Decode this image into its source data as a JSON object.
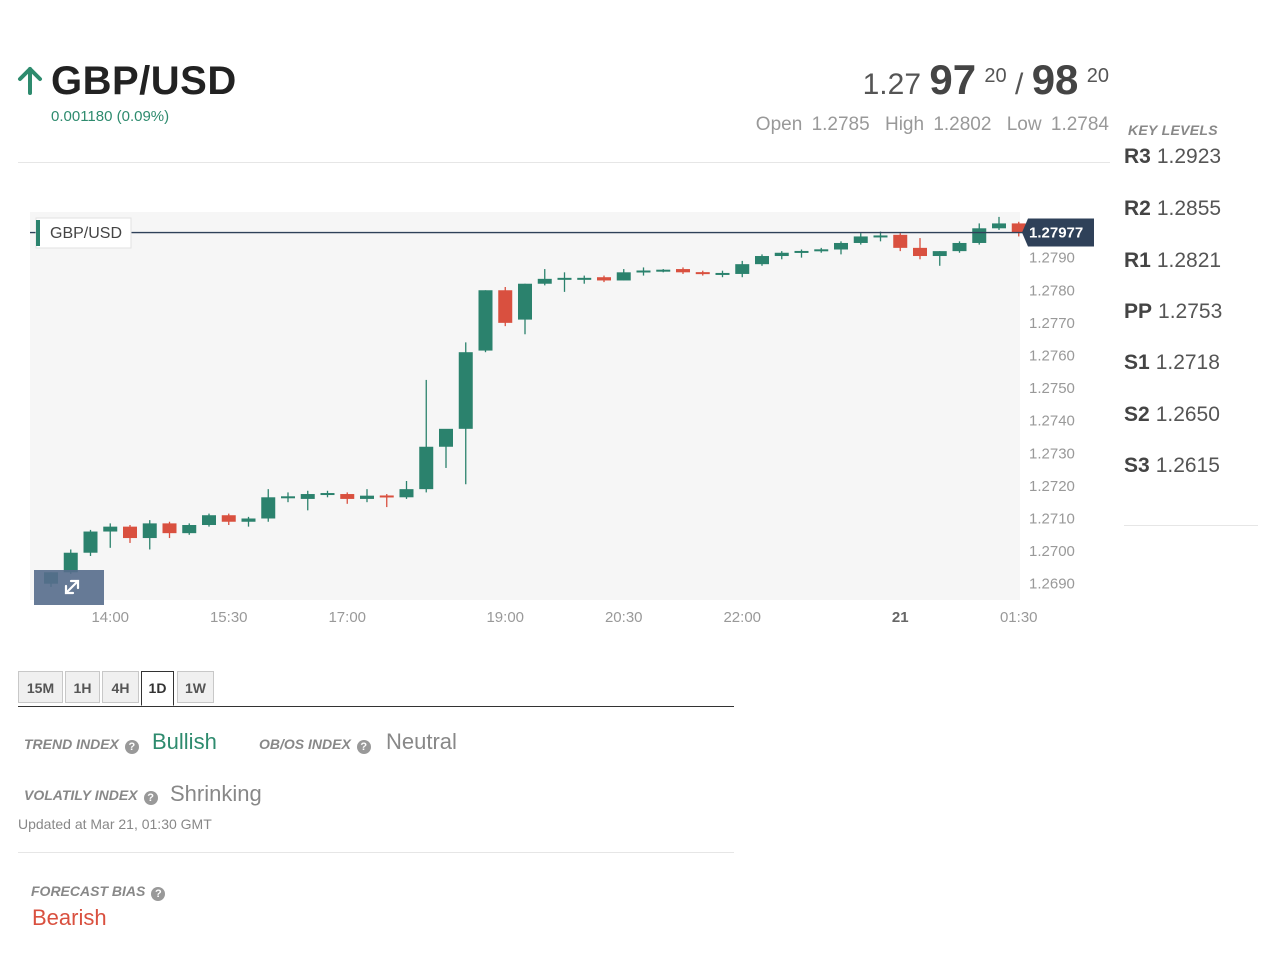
{
  "header": {
    "pair": "GBP/USD",
    "direction": "up",
    "change": "0.001180 (0.09%)",
    "bid": {
      "prefix": "1.27",
      "big": "97",
      "pip": "20"
    },
    "separator": "/",
    "ask": {
      "big": "98",
      "pip": "20"
    },
    "open_label": "Open",
    "open": "1.2785",
    "high_label": "High",
    "high": "1.2802",
    "low_label": "Low",
    "low": "1.2784"
  },
  "key_levels": {
    "title": "KEY LEVELS",
    "levels": [
      {
        "name": "R3",
        "value": "1.2923"
      },
      {
        "name": "R2",
        "value": "1.2855"
      },
      {
        "name": "R1",
        "value": "1.2821"
      },
      {
        "name": "PP",
        "value": "1.2753"
      },
      {
        "name": "S1",
        "value": "1.2718"
      },
      {
        "name": "S2",
        "value": "1.2650"
      },
      {
        "name": "S3",
        "value": "1.2615"
      }
    ]
  },
  "chart_data": {
    "type": "candlestick",
    "symbol_label": "GBP/USD",
    "current_price": "1.27977",
    "ylim": [
      1.2685,
      1.2804
    ],
    "yticks": [
      "1.2790",
      "1.2780",
      "1.2770",
      "1.2760",
      "1.2750",
      "1.2740",
      "1.2730",
      "1.2720",
      "1.2710",
      "1.2700",
      "1.2690"
    ],
    "xticks": [
      {
        "label": "14:00",
        "bar": 3,
        "bold": false
      },
      {
        "label": "15:30",
        "bar": 9,
        "bold": false
      },
      {
        "label": "17:00",
        "bar": 15,
        "bold": false
      },
      {
        "label": "19:00",
        "bar": 23,
        "bold": false
      },
      {
        "label": "20:30",
        "bar": 29,
        "bold": false
      },
      {
        "label": "22:00",
        "bar": 35,
        "bold": false
      },
      {
        "label": "21",
        "bar": 43,
        "bold": true
      },
      {
        "label": "01:30",
        "bar": 49,
        "bold": false
      }
    ],
    "candles": [
      [
        1.269,
        1.26935,
        1.2689,
        1.26935
      ],
      [
        1.26935,
        1.27005,
        1.2693,
        1.26995
      ],
      [
        1.26995,
        1.27065,
        1.26985,
        1.2706
      ],
      [
        1.2706,
        1.27085,
        1.2701,
        1.27075
      ],
      [
        1.27075,
        1.2708,
        1.27025,
        1.2704
      ],
      [
        1.2704,
        1.27095,
        1.27005,
        1.27085
      ],
      [
        1.27085,
        1.2709,
        1.2704,
        1.27055
      ],
      [
        1.27055,
        1.27085,
        1.2705,
        1.2708
      ],
      [
        1.2708,
        1.27115,
        1.27075,
        1.2711
      ],
      [
        1.2711,
        1.27115,
        1.2708,
        1.2709
      ],
      [
        1.2709,
        1.27105,
        1.27075,
        1.271
      ],
      [
        1.271,
        1.2719,
        1.2709,
        1.27165
      ],
      [
        1.27165,
        1.2718,
        1.2715,
        1.27165
      ],
      [
        1.2716,
        1.27185,
        1.27125,
        1.27175
      ],
      [
        1.27175,
        1.27185,
        1.27165,
        1.27175
      ],
      [
        1.27175,
        1.2718,
        1.27145,
        1.2716
      ],
      [
        1.2716,
        1.2719,
        1.2715,
        1.2717
      ],
      [
        1.2717,
        1.27175,
        1.27135,
        1.27165
      ],
      [
        1.27165,
        1.27215,
        1.2716,
        1.2719
      ],
      [
        1.2719,
        1.27525,
        1.2718,
        1.2732
      ],
      [
        1.2732,
        1.2737,
        1.27255,
        1.27375
      ],
      [
        1.27375,
        1.2764,
        1.27205,
        1.2761
      ],
      [
        1.27615,
        1.278,
        1.2761,
        1.278
      ],
      [
        1.278,
        1.2781,
        1.2769,
        1.277
      ],
      [
        1.2771,
        1.2782,
        1.27665,
        1.2782
      ],
      [
        1.2782,
        1.27865,
        1.27815,
        1.27835
      ],
      [
        1.27835,
        1.27855,
        1.27795,
        1.27835
      ],
      [
        1.27835,
        1.27845,
        1.2782,
        1.27835
      ],
      [
        1.2784,
        1.27845,
        1.27825,
        1.2783
      ],
      [
        1.2783,
        1.27865,
        1.2783,
        1.27855
      ],
      [
        1.27855,
        1.2787,
        1.27845,
        1.2786
      ],
      [
        1.2786,
        1.27865,
        1.27855,
        1.2786
      ],
      [
        1.27865,
        1.2787,
        1.2785,
        1.27855
      ],
      [
        1.27855,
        1.2786,
        1.27845,
        1.2785
      ],
      [
        1.2785,
        1.2786,
        1.2784,
        1.2785
      ],
      [
        1.2785,
        1.2789,
        1.2784,
        1.2788
      ],
      [
        1.2788,
        1.2791,
        1.27875,
        1.27905
      ],
      [
        1.27905,
        1.2792,
        1.27895,
        1.27915
      ],
      [
        1.27915,
        1.27925,
        1.279,
        1.2792
      ],
      [
        1.2792,
        1.2793,
        1.27915,
        1.27925
      ],
      [
        1.27925,
        1.2795,
        1.2791,
        1.27945
      ],
      [
        1.27945,
        1.27975,
        1.2794,
        1.27965
      ],
      [
        1.27965,
        1.2798,
        1.2795,
        1.27965
      ],
      [
        1.2797,
        1.27975,
        1.2792,
        1.2793
      ],
      [
        1.2793,
        1.2796,
        1.27895,
        1.27905
      ],
      [
        1.27905,
        1.2792,
        1.27875,
        1.2792
      ],
      [
        1.2792,
        1.2795,
        1.27915,
        1.27945
      ],
      [
        1.27945,
        1.28005,
        1.2794,
        1.2799
      ],
      [
        1.2799,
        1.28025,
        1.27985,
        1.28005
      ],
      [
        1.28005,
        1.2801,
        1.27965,
        1.27977
      ]
    ],
    "colors": {
      "up": "#2b826d",
      "down": "#d9503f",
      "price_line": "#2f4159",
      "price_tag": "#2f4159"
    }
  },
  "timeframes": {
    "items": [
      "15M",
      "1H",
      "4H",
      "1D",
      "1W"
    ],
    "active": "1D"
  },
  "indices": {
    "trend_label": "TREND INDEX",
    "trend_value": "Bullish",
    "obos_label": "OB/OS INDEX",
    "obos_value": "Neutral",
    "volatility_label": "VOLATILY INDEX",
    "volatility_value": "Shrinking",
    "updated": "Updated at Mar 21, 01:30 GMT"
  },
  "forecast": {
    "label": "FORECAST BIAS",
    "value": "Bearish"
  },
  "colors": {
    "bullish": "#2e8b6e",
    "bearish": "#d9503f",
    "neutral": "#888888"
  }
}
